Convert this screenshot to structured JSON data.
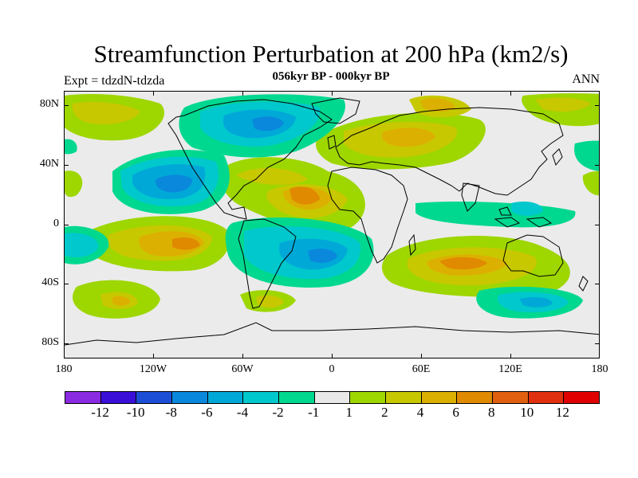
{
  "title": "Streamfunction Perturbation at 200 hPa (km2/s)",
  "subtitle": "056kyr BP - 000kyr BP",
  "experiment_label": "Expt = tdzdN-tdzda",
  "season_label": "ANN",
  "lat_labels": [
    "80N",
    "40N",
    "0",
    "40S",
    "80S"
  ],
  "lon_labels": [
    "180",
    "120W",
    "60W",
    "0",
    "60E",
    "120E",
    "180"
  ],
  "colorbar": {
    "labels": [
      "-12",
      "-10",
      "-8",
      "-6",
      "-4",
      "-2",
      "-1",
      "1",
      "2",
      "4",
      "6",
      "8",
      "10",
      "12"
    ],
    "colors": [
      "#8a2be2",
      "#3a10d8",
      "#1c4fd6",
      "#0a88dc",
      "#00a8d8",
      "#00c8cc",
      "#00d890",
      "#e8e8e8",
      "#9ed600",
      "#c8c800",
      "#dcb000",
      "#e08a00",
      "#e06010",
      "#e03010",
      "#e00000"
    ]
  },
  "colors": {
    "background": "#ffffff",
    "zero_band": "#ebebeb",
    "coastline": "#000000"
  }
}
